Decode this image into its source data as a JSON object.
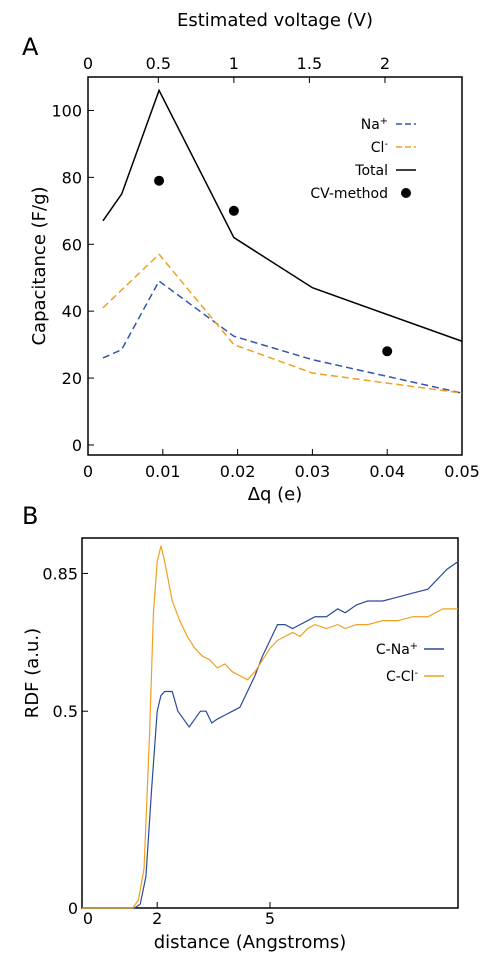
{
  "chart_data": [
    {
      "panel": "A",
      "type": "line",
      "xlabel": "Δq (e)",
      "ylabel": "Capacitance  (F/g)",
      "top_xlabel": "Estimated voltage (V)",
      "xlim": [
        0,
        0.05
      ],
      "ylim": [
        -3,
        110
      ],
      "xticks": [
        0,
        0.01,
        0.02,
        0.03,
        0.04,
        0.05
      ],
      "xtick_labels": [
        "0",
        "0.01",
        "0.02",
        "0.03",
        "0.04",
        "0.05"
      ],
      "yticks": [
        0,
        20,
        40,
        60,
        80,
        100
      ],
      "ytick_labels": [
        "0",
        "20",
        "40",
        "60",
        "80",
        "100"
      ],
      "top_xticks": [
        0,
        0.5,
        1,
        1.5,
        2
      ],
      "top_xtick_labels": [
        "0",
        "0.5",
        "1",
        "1.5",
        "2"
      ],
      "top_tick_positions": [
        0.0,
        0.0094,
        0.0195,
        0.0296,
        0.0397
      ],
      "legend": "top-right",
      "series": [
        {
          "name": "Na",
          "name_sup": "+",
          "style": "dashed",
          "color": "#3355aa",
          "x": [
            0.002,
            0.0045,
            0.0095,
            0.0195,
            0.03,
            0.05
          ],
          "y": [
            26,
            28.5,
            49,
            32.5,
            25.5,
            15.5
          ]
        },
        {
          "name": "Cl",
          "name_sup": "-",
          "style": "dashed",
          "color": "#f0a020",
          "x": [
            0.002,
            0.0095,
            0.0195,
            0.03,
            0.05
          ],
          "y": [
            41,
            57,
            30,
            21.5,
            15.5
          ]
        },
        {
          "name": "Total",
          "style": "solid",
          "color": "#000000",
          "x": [
            0.002,
            0.0045,
            0.0095,
            0.0195,
            0.03,
            0.05
          ],
          "y": [
            67,
            75,
            106,
            62,
            47,
            31
          ]
        },
        {
          "name": "CV-method",
          "style": "marker",
          "color": "#000000",
          "x": [
            0.0095,
            0.0195,
            0.04
          ],
          "y": [
            79,
            70,
            28
          ]
        }
      ]
    },
    {
      "panel": "B",
      "type": "line",
      "xlabel": "distance (Angstroms)",
      "ylabel": "RDF (a.u.)",
      "xlim": [
        0,
        10
      ],
      "ylim": [
        0,
        0.94
      ],
      "xticks": [
        0,
        2,
        5
      ],
      "xtick_labels": [
        "0",
        "2",
        "5"
      ],
      "yticks": [
        0,
        0.5,
        0.85
      ],
      "ytick_labels": [
        "0",
        "0.5",
        "0.85"
      ],
      "legend": "right",
      "series": [
        {
          "name": "C-Na",
          "name_sup": "+",
          "color": "#2b4a9a",
          "x": [
            0,
            1.4,
            1.55,
            1.7,
            1.85,
            2.0,
            2.1,
            2.2,
            2.4,
            2.55,
            2.7,
            2.85,
            3.0,
            3.15,
            3.3,
            3.45,
            3.6,
            3.8,
            4.0,
            4.2,
            4.4,
            4.6,
            4.8,
            5.0,
            5.2,
            5.4,
            5.6,
            5.8,
            6.0,
            6.2,
            6.5,
            6.8,
            7.0,
            7.3,
            7.6,
            8.0,
            8.4,
            8.8,
            9.2,
            9.5,
            9.7,
            10.0
          ],
          "y": [
            0,
            0,
            0.01,
            0.08,
            0.3,
            0.5,
            0.54,
            0.55,
            0.55,
            0.5,
            0.48,
            0.46,
            0.48,
            0.5,
            0.5,
            0.47,
            0.48,
            0.49,
            0.5,
            0.51,
            0.55,
            0.59,
            0.64,
            0.68,
            0.72,
            0.72,
            0.71,
            0.72,
            0.73,
            0.74,
            0.74,
            0.76,
            0.75,
            0.77,
            0.78,
            0.78,
            0.79,
            0.8,
            0.81,
            0.84,
            0.86,
            0.88
          ]
        },
        {
          "name": "C-Cl",
          "name_sup": "-",
          "color": "#f0a020",
          "x": [
            0,
            1.35,
            1.5,
            1.65,
            1.8,
            1.9,
            2.0,
            2.1,
            2.2,
            2.4,
            2.6,
            2.8,
            3.0,
            3.2,
            3.4,
            3.6,
            3.8,
            4.0,
            4.2,
            4.4,
            4.6,
            4.8,
            5.0,
            5.2,
            5.4,
            5.6,
            5.8,
            6.0,
            6.2,
            6.5,
            6.8,
            7.0,
            7.3,
            7.6,
            8.0,
            8.4,
            8.8,
            9.2,
            9.6,
            10.0
          ],
          "y": [
            0,
            0,
            0.02,
            0.1,
            0.45,
            0.75,
            0.88,
            0.92,
            0.88,
            0.78,
            0.73,
            0.69,
            0.66,
            0.64,
            0.63,
            0.61,
            0.62,
            0.6,
            0.59,
            0.58,
            0.6,
            0.63,
            0.66,
            0.68,
            0.69,
            0.7,
            0.69,
            0.71,
            0.72,
            0.71,
            0.72,
            0.71,
            0.72,
            0.72,
            0.73,
            0.73,
            0.74,
            0.74,
            0.76,
            0.76
          ]
        }
      ]
    }
  ]
}
